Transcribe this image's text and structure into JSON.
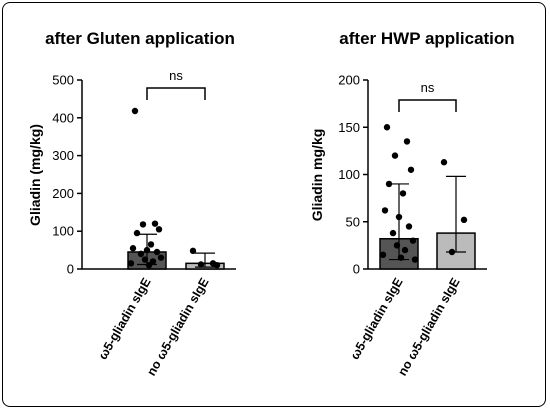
{
  "chart_data": [
    {
      "type": "bar",
      "title": "after Gluten application",
      "ylabel": "Gliadin (mg/kg)",
      "xlabel": "",
      "ylim": [
        0,
        500
      ],
      "yticks": [
        0,
        100,
        200,
        300,
        400,
        500
      ],
      "categories": [
        "ω5-gliadin sIgE",
        "no ω5-gliadin sIgE"
      ],
      "bars": [
        {
          "value": 45,
          "err_low": 12,
          "err_high": 92,
          "color": "#555555",
          "points": [
            418,
            120,
            118,
            105,
            95,
            65,
            55,
            50,
            45,
            40,
            30,
            25,
            20,
            15,
            10
          ]
        },
        {
          "value": 15,
          "err_low": 5,
          "err_high": 42,
          "color": "#bbbbbb",
          "points": [
            48,
            15,
            12,
            10
          ]
        }
      ],
      "comparison": "ns",
      "grid": false
    },
    {
      "type": "bar",
      "title": "after HWP application",
      "ylabel": "Gliadin mg/kg",
      "xlabel": "",
      "ylim": [
        0,
        200
      ],
      "yticks": [
        0,
        50,
        100,
        150,
        200
      ],
      "categories": [
        "ω5-gliadin sIgE",
        "no ω5-gliadin sIgE"
      ],
      "bars": [
        {
          "value": 32,
          "err_low": 10,
          "err_high": 90,
          "color": "#555555",
          "points": [
            150,
            135,
            120,
            105,
            90,
            80,
            62,
            55,
            45,
            38,
            30,
            25,
            20,
            15,
            12,
            10
          ]
        },
        {
          "value": 38,
          "err_low": 18,
          "err_high": 98,
          "color": "#bbbbbb",
          "points": [
            113,
            52,
            18
          ]
        }
      ],
      "comparison": "ns",
      "grid": false
    }
  ]
}
